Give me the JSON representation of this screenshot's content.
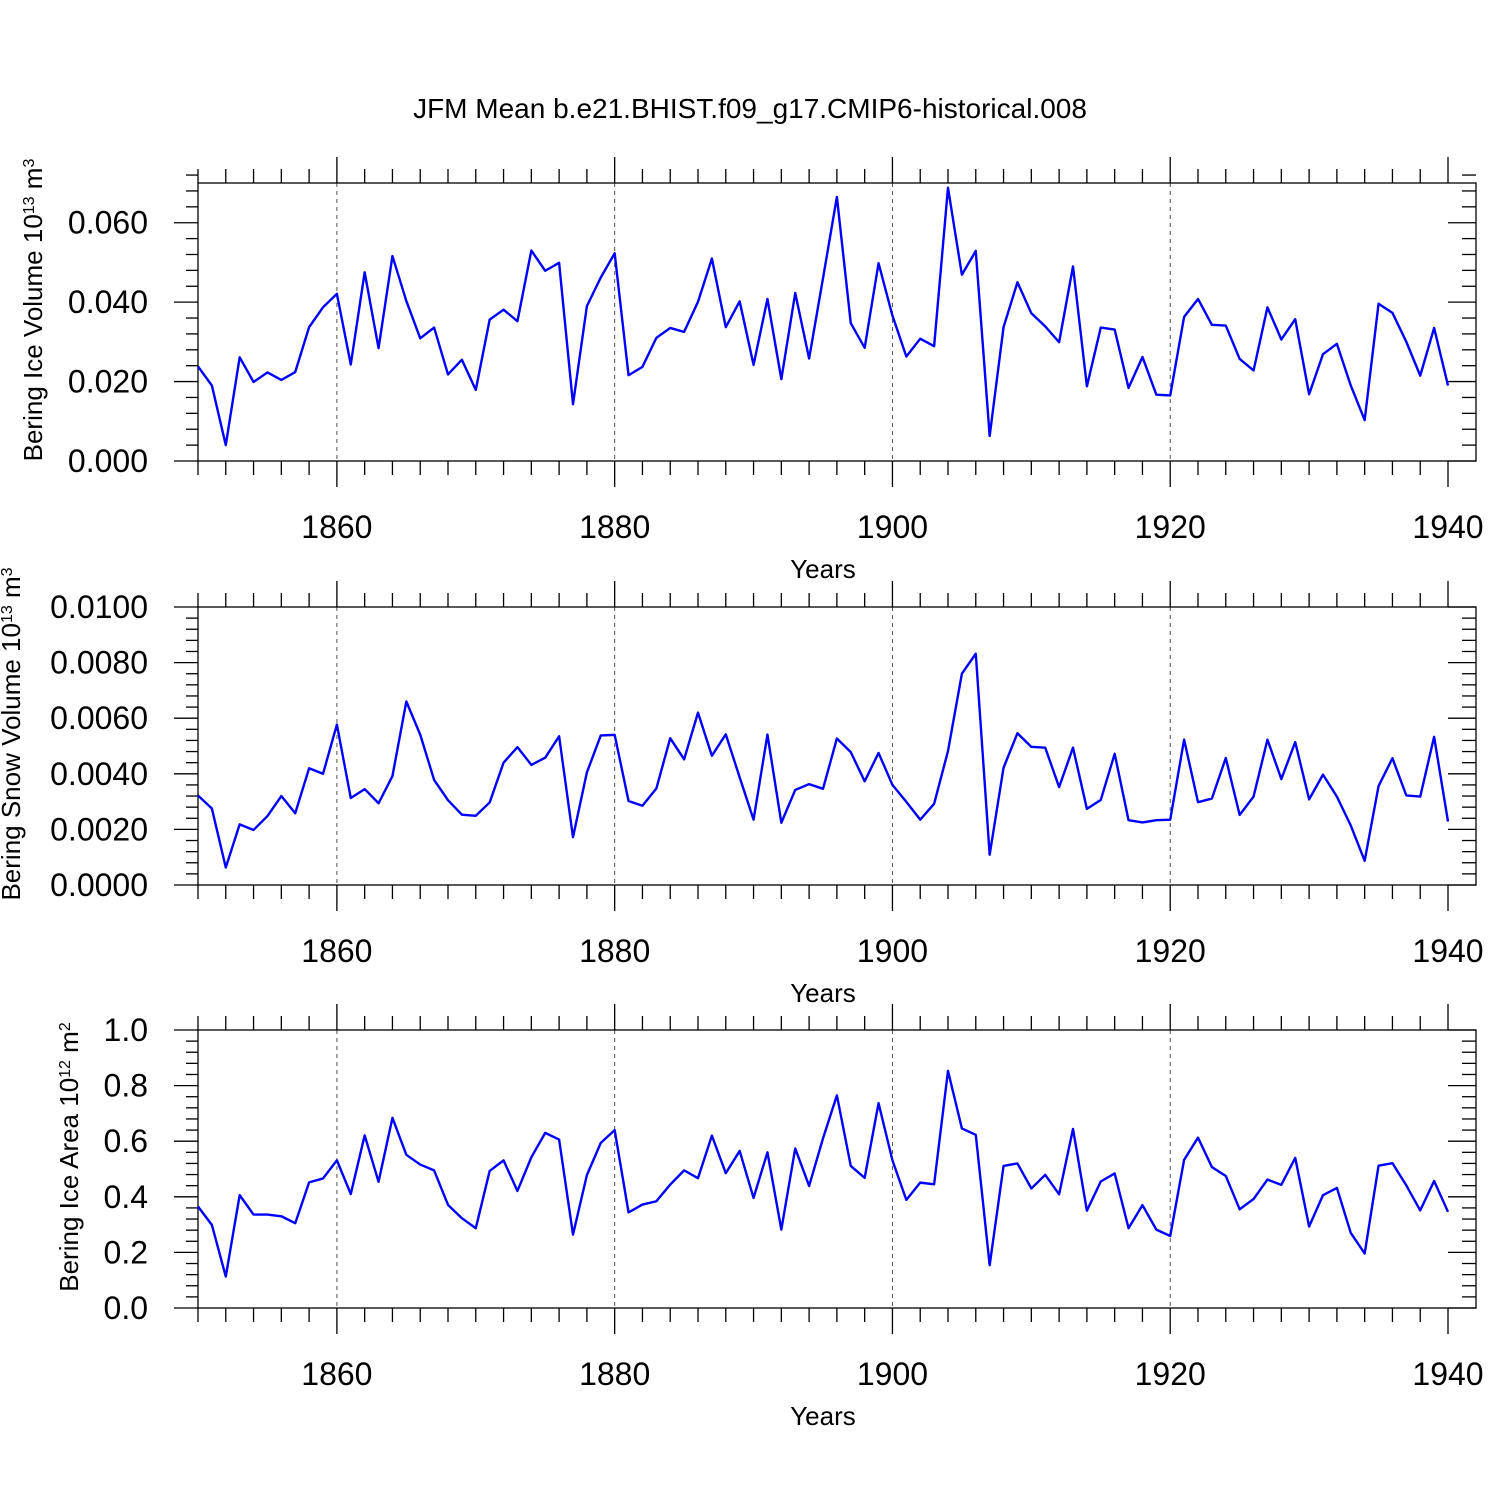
{
  "title": "JFM Mean b.e21.BHIST.f09_g17.CMIP6-historical.008",
  "colors": {
    "line": "#0000ff",
    "axis": "#000000",
    "grid": "#555555"
  },
  "chart_data": [
    {
      "type": "line",
      "ylabel": "Bering Ice Volume 10",
      "ylabel_sup": "13",
      "ylabel_unit": " m",
      "ylabel_unit_sup": "3",
      "xlabel": "Years",
      "xlim": [
        1850,
        1940
      ],
      "ylim": [
        0.0,
        0.07
      ],
      "xticks": [
        1860,
        1880,
        1900,
        1920,
        1940
      ],
      "xtick_labels": [
        "1860",
        "1880",
        "1900",
        "1920",
        "1940"
      ],
      "yticks": [
        0.0,
        0.02,
        0.04,
        0.06
      ],
      "ytick_labels": [
        "0.000",
        "0.020",
        "0.040",
        "0.060"
      ],
      "grid_x": [
        1860,
        1880,
        1900,
        1920
      ],
      "x": [
        1850,
        1851,
        1852,
        1853,
        1854,
        1855,
        1856,
        1857,
        1858,
        1859,
        1860,
        1861,
        1862,
        1863,
        1864,
        1865,
        1866,
        1867,
        1868,
        1869,
        1870,
        1871,
        1872,
        1873,
        1874,
        1875,
        1876,
        1877,
        1878,
        1879,
        1880,
        1881,
        1882,
        1883,
        1884,
        1885,
        1886,
        1887,
        1888,
        1889,
        1890,
        1891,
        1892,
        1893,
        1894,
        1895,
        1896,
        1897,
        1898,
        1899,
        1900,
        1901,
        1902,
        1903,
        1904,
        1905,
        1906,
        1907,
        1908,
        1909,
        1910,
        1911,
        1912,
        1913,
        1914,
        1915,
        1916,
        1917,
        1918,
        1919,
        1920,
        1921,
        1922,
        1923,
        1924,
        1925,
        1926,
        1927,
        1928,
        1929,
        1930,
        1931,
        1932,
        1933,
        1934,
        1935,
        1936,
        1937,
        1938,
        1939,
        1940
      ],
      "values": [
        0.0238,
        0.019,
        0.004,
        0.0261,
        0.0199,
        0.0223,
        0.0204,
        0.0224,
        0.0337,
        0.0387,
        0.0421,
        0.0243,
        0.0475,
        0.0284,
        0.0516,
        0.0403,
        0.0309,
        0.0336,
        0.0218,
        0.0255,
        0.0179,
        0.0356,
        0.0381,
        0.0352,
        0.053,
        0.0479,
        0.0499,
        0.0143,
        0.039,
        0.0462,
        0.0523,
        0.0216,
        0.0237,
        0.031,
        0.0335,
        0.0325,
        0.0401,
        0.051,
        0.0337,
        0.0402,
        0.0242,
        0.0408,
        0.0206,
        0.0423,
        0.0258,
        0.046,
        0.0665,
        0.0347,
        0.0285,
        0.0498,
        0.0366,
        0.0263,
        0.0308,
        0.0289,
        0.0688,
        0.0469,
        0.0529,
        0.0063,
        0.0337,
        0.045,
        0.0372,
        0.0339,
        0.0299,
        0.049,
        0.0188,
        0.0336,
        0.0331,
        0.0184,
        0.0262,
        0.0167,
        0.0165,
        0.0363,
        0.0408,
        0.0343,
        0.0341,
        0.0257,
        0.0228,
        0.0387,
        0.0306,
        0.0357,
        0.0168,
        0.0269,
        0.0295,
        0.019,
        0.0103,
        0.0396,
        0.0373,
        0.03,
        0.0215,
        0.0335,
        0.019
      ]
    },
    {
      "type": "line",
      "ylabel": "Bering Snow Volume 10",
      "ylabel_sup": "13",
      "ylabel_unit": " m",
      "ylabel_unit_sup": "3",
      "xlabel": "Years",
      "xlim": [
        1850,
        1940
      ],
      "ylim": [
        0.0,
        0.01
      ],
      "xticks": [
        1860,
        1880,
        1900,
        1920,
        1940
      ],
      "xtick_labels": [
        "1860",
        "1880",
        "1900",
        "1920",
        "1940"
      ],
      "yticks": [
        0.0,
        0.002,
        0.004,
        0.006,
        0.008,
        0.01
      ],
      "ytick_labels": [
        "0.0000",
        "0.0020",
        "0.0040",
        "0.0060",
        "0.0080",
        "0.0100"
      ],
      "grid_x": [
        1860,
        1880,
        1900,
        1920
      ],
      "x": [
        1850,
        1851,
        1852,
        1853,
        1854,
        1855,
        1856,
        1857,
        1858,
        1859,
        1860,
        1861,
        1862,
        1863,
        1864,
        1865,
        1866,
        1867,
        1868,
        1869,
        1870,
        1871,
        1872,
        1873,
        1874,
        1875,
        1876,
        1877,
        1878,
        1879,
        1880,
        1881,
        1882,
        1883,
        1884,
        1885,
        1886,
        1887,
        1888,
        1889,
        1890,
        1891,
        1892,
        1893,
        1894,
        1895,
        1896,
        1897,
        1898,
        1899,
        1900,
        1901,
        1902,
        1903,
        1904,
        1905,
        1906,
        1907,
        1908,
        1909,
        1910,
        1911,
        1912,
        1913,
        1914,
        1915,
        1916,
        1917,
        1918,
        1919,
        1920,
        1921,
        1922,
        1923,
        1924,
        1925,
        1926,
        1927,
        1928,
        1929,
        1930,
        1931,
        1932,
        1933,
        1934,
        1935,
        1936,
        1937,
        1938,
        1939,
        1940
      ],
      "values": [
        0.00322,
        0.00275,
        0.00063,
        0.00218,
        0.00198,
        0.00248,
        0.0032,
        0.00258,
        0.0042,
        0.004,
        0.00577,
        0.00313,
        0.00345,
        0.00294,
        0.00392,
        0.0066,
        0.00541,
        0.00378,
        0.00305,
        0.00253,
        0.00249,
        0.00297,
        0.0044,
        0.00496,
        0.00432,
        0.00458,
        0.00535,
        0.00172,
        0.00405,
        0.00538,
        0.0054,
        0.00302,
        0.00285,
        0.00347,
        0.00528,
        0.00452,
        0.0062,
        0.00465,
        0.00542,
        0.00387,
        0.00235,
        0.00541,
        0.00224,
        0.00342,
        0.00363,
        0.00346,
        0.00527,
        0.00478,
        0.00373,
        0.00475,
        0.0036,
        0.00299,
        0.00235,
        0.00292,
        0.00482,
        0.0076,
        0.00832,
        0.00109,
        0.00422,
        0.00546,
        0.00497,
        0.00494,
        0.00352,
        0.00494,
        0.00274,
        0.00306,
        0.00472,
        0.00233,
        0.00225,
        0.00233,
        0.00235,
        0.00523,
        0.00298,
        0.00311,
        0.00457,
        0.00252,
        0.00318,
        0.00523,
        0.00381,
        0.00514,
        0.00308,
        0.00397,
        0.00318,
        0.00214,
        0.00087,
        0.00356,
        0.00456,
        0.00322,
        0.00318,
        0.00533,
        0.00228
      ]
    },
    {
      "type": "line",
      "ylabel": "Bering Ice Area 10",
      "ylabel_sup": "12",
      "ylabel_unit": " m",
      "ylabel_unit_sup": "2",
      "xlabel": "Years",
      "xlim": [
        1850,
        1940
      ],
      "ylim": [
        0.0,
        1.0
      ],
      "xticks": [
        1860,
        1880,
        1900,
        1920,
        1940
      ],
      "xtick_labels": [
        "1860",
        "1880",
        "1900",
        "1920",
        "1940"
      ],
      "yticks": [
        0.0,
        0.2,
        0.4,
        0.6,
        0.8,
        1.0
      ],
      "ytick_labels": [
        "0.0",
        "0.2",
        "0.4",
        "0.6",
        "0.8",
        "1.0"
      ],
      "grid_x": [
        1860,
        1880,
        1900,
        1920
      ],
      "x": [
        1850,
        1851,
        1852,
        1853,
        1854,
        1855,
        1856,
        1857,
        1858,
        1859,
        1860,
        1861,
        1862,
        1863,
        1864,
        1865,
        1866,
        1867,
        1868,
        1869,
        1870,
        1871,
        1872,
        1873,
        1874,
        1875,
        1876,
        1877,
        1878,
        1879,
        1880,
        1881,
        1882,
        1883,
        1884,
        1885,
        1886,
        1887,
        1888,
        1889,
        1890,
        1891,
        1892,
        1893,
        1894,
        1895,
        1896,
        1897,
        1898,
        1899,
        1900,
        1901,
        1902,
        1903,
        1904,
        1905,
        1906,
        1907,
        1908,
        1909,
        1910,
        1911,
        1912,
        1913,
        1914,
        1915,
        1916,
        1917,
        1918,
        1919,
        1920,
        1921,
        1922,
        1923,
        1924,
        1925,
        1926,
        1927,
        1928,
        1929,
        1930,
        1931,
        1932,
        1933,
        1934,
        1935,
        1936,
        1937,
        1938,
        1939,
        1940
      ],
      "values": [
        0.365,
        0.299,
        0.113,
        0.406,
        0.336,
        0.336,
        0.33,
        0.305,
        0.452,
        0.466,
        0.531,
        0.41,
        0.621,
        0.454,
        0.684,
        0.551,
        0.516,
        0.495,
        0.371,
        0.323,
        0.287,
        0.493,
        0.531,
        0.421,
        0.542,
        0.63,
        0.606,
        0.264,
        0.478,
        0.594,
        0.64,
        0.344,
        0.372,
        0.384,
        0.444,
        0.495,
        0.467,
        0.62,
        0.485,
        0.565,
        0.396,
        0.56,
        0.282,
        0.574,
        0.439,
        0.61,
        0.765,
        0.511,
        0.468,
        0.737,
        0.531,
        0.389,
        0.451,
        0.445,
        0.853,
        0.646,
        0.623,
        0.154,
        0.511,
        0.52,
        0.43,
        0.479,
        0.409,
        0.644,
        0.35,
        0.455,
        0.484,
        0.287,
        0.37,
        0.282,
        0.259,
        0.533,
        0.613,
        0.507,
        0.475,
        0.355,
        0.392,
        0.462,
        0.443,
        0.54,
        0.293,
        0.406,
        0.432,
        0.27,
        0.196,
        0.512,
        0.521,
        0.441,
        0.351,
        0.457,
        0.346
      ]
    }
  ]
}
